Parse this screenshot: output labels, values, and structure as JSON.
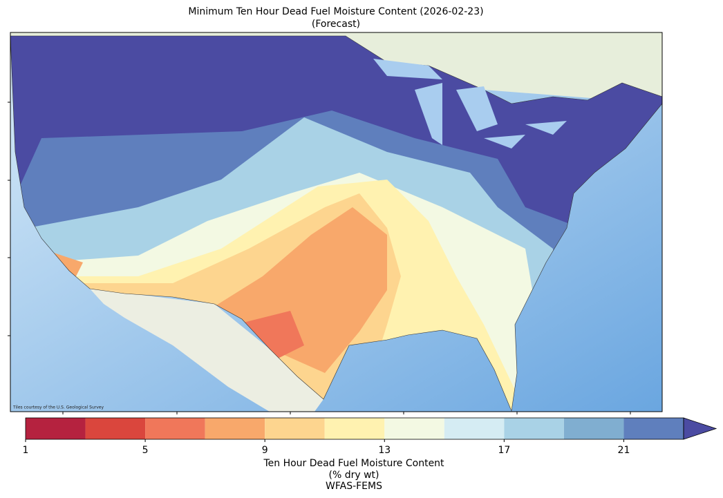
{
  "chart_data": {
    "type": "colorbar-map",
    "title_lines": [
      "Minimum Ten Hour Dead Fuel Moisture Content (2026-02-23)",
      "(Forecast)"
    ],
    "attribution": "Tiles courtesy of the U.S. Geological Survey",
    "colorbar": {
      "bins": [
        1,
        3,
        5,
        7,
        9,
        11,
        13,
        15,
        17,
        19,
        21,
        23
      ],
      "colors": [
        "#b5223f",
        "#da463d",
        "#f0775a",
        "#f8a86b",
        "#fdd58f",
        "#fff2b0",
        "#f3f9e3",
        "#d5ecf3",
        "#a9d2e6",
        "#80aed0",
        "#5f7fbd"
      ],
      "extend_color": "#4b4ba2",
      "ticks": [
        1,
        5,
        9,
        13,
        17,
        21
      ],
      "label_lines": [
        "Ten Hour Dead Fuel Moisture Content",
        "(% dry wt)",
        "WFAS-FEMS"
      ]
    }
  }
}
